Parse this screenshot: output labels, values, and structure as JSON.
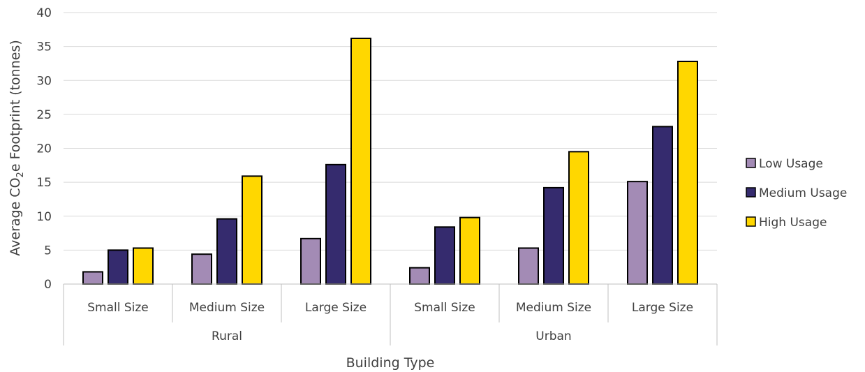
{
  "chart_data": {
    "type": "bar",
    "xlabel": "Building Type",
    "ylabel": {
      "prefix": "Average CO",
      "subscript": "2",
      "suffix": "e Footprint (tonnes)"
    },
    "ylim": [
      0,
      40
    ],
    "yticks": [
      0,
      5,
      10,
      15,
      20,
      25,
      30,
      35,
      40
    ],
    "grid": true,
    "legend_position": "right",
    "groups": [
      {
        "label": "Rural",
        "categories": [
          "Small Size",
          "Medium Size",
          "Large Size"
        ]
      },
      {
        "label": "Urban",
        "categories": [
          "Small Size",
          "Medium Size",
          "Large Size"
        ]
      }
    ],
    "categories": [
      "Rural / Small Size",
      "Rural / Medium Size",
      "Rural / Large Size",
      "Urban / Small Size",
      "Urban / Medium Size",
      "Urban / Large Size"
    ],
    "series": [
      {
        "name": "Low Usage",
        "color": "#a38bb5",
        "values": [
          1.8,
          4.4,
          6.7,
          2.4,
          5.3,
          15.1
        ]
      },
      {
        "name": "Medium Usage",
        "color": "#352b6e",
        "values": [
          5.0,
          9.6,
          17.6,
          8.4,
          14.2,
          23.2
        ]
      },
      {
        "name": "High Usage",
        "color": "#ffd700",
        "values": [
          5.3,
          15.9,
          36.2,
          9.8,
          19.5,
          32.8
        ]
      }
    ]
  }
}
